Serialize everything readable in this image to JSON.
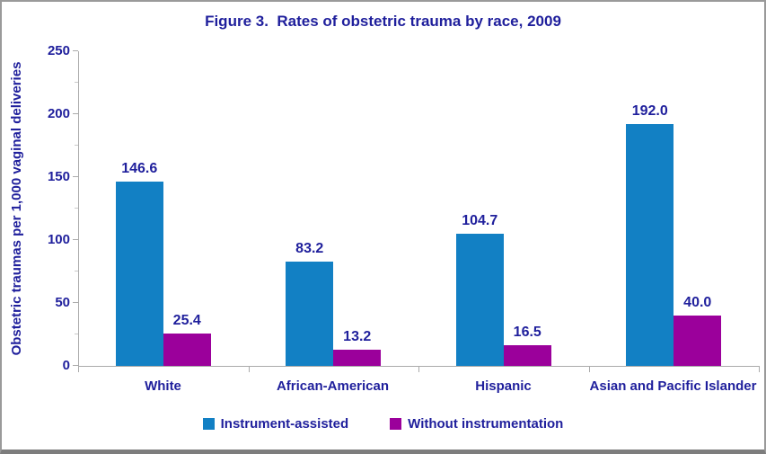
{
  "chart_data": {
    "type": "bar",
    "title": "Figure 3.  Rates of obstetric trauma by race, 2009",
    "ylabel": "Obstetric traumas per 1,000 vaginal deliveries",
    "xlabel": "",
    "categories": [
      "White",
      "African-American",
      "Hispanic",
      "Asian and Pacific Islander"
    ],
    "series": [
      {
        "name": "Instrument-assisted",
        "color": "#1280c4",
        "values": [
          146.6,
          83.2,
          104.7,
          192.0
        ]
      },
      {
        "name": "Without instrumentation",
        "color": "#9b009b",
        "values": [
          25.4,
          13.2,
          16.5,
          40.0
        ]
      }
    ],
    "ylim": [
      0,
      250
    ],
    "yticks": [
      0,
      50,
      100,
      150,
      200,
      250
    ],
    "minor_tick_step": 25,
    "grid": false,
    "legend_position": "bottom",
    "value_labels": true,
    "value_label_decimals": 1
  },
  "colors": {
    "text": "#1f1f9c",
    "axis": "#ababab",
    "frame_border": "#9a9a9a"
  }
}
